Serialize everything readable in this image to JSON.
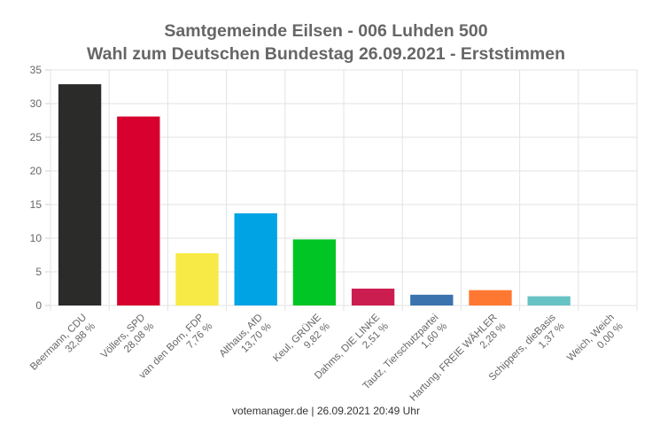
{
  "chart_data": {
    "type": "bar",
    "title": [
      "Samtgemeinde Eilsen - 006 Luhden 500",
      "Wahl zum Deutschen Bundestag 26.09.2021  - Erststimmen"
    ],
    "categories": [
      [
        "Beermann, CDU",
        "32,88 %"
      ],
      [
        "Völlers, SPD",
        "28,08 %"
      ],
      [
        "van den Born, FDP",
        "7,76 %"
      ],
      [
        "Althaus, AfD",
        "13,70 %"
      ],
      [
        "Keul, GRÜNE",
        "9,82 %"
      ],
      [
        "Dahms, DIE LINKE",
        "2,51 %"
      ],
      [
        "Tautz, Tierschutzpartei",
        "1,60 %"
      ],
      [
        "Hartung, FREIE WÄHLER",
        "2,28 %"
      ],
      [
        "Schippers, dieBasis",
        "1,37 %"
      ],
      [
        "Weich, Weich",
        "0,00 %"
      ]
    ],
    "values": [
      32.88,
      28.08,
      7.76,
      13.7,
      9.82,
      2.51,
      1.6,
      2.28,
      1.37,
      0.0
    ],
    "colors": [
      "#2b2b29",
      "#d8002e",
      "#f8ea46",
      "#00a3e4",
      "#00c524",
      "#cc1d51",
      "#3a73ad",
      "#ff7832",
      "#67c2c4",
      "#999999"
    ],
    "ylim": [
      0,
      35
    ],
    "yticks": [
      0,
      5,
      10,
      15,
      20,
      25,
      30,
      35
    ],
    "grid": true,
    "legend": "none"
  },
  "footer": "votemanager.de | 26.09.2021 20:49 Uhr"
}
